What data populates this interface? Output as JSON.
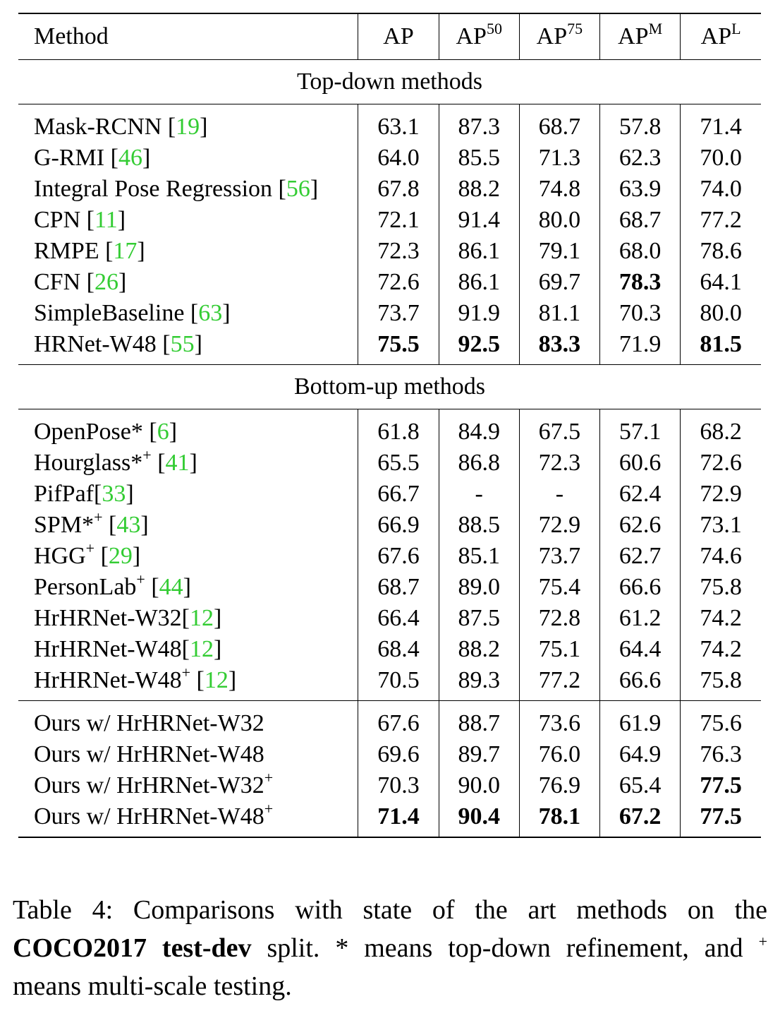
{
  "table": {
    "columns": [
      "Method",
      "AP",
      "AP",
      "AP",
      "AP",
      "AP"
    ],
    "column_superscripts": [
      "",
      "",
      "50",
      "75",
      "M",
      "L"
    ],
    "sections": [
      {
        "title": "Top-down methods",
        "groups": [
          [
            {
              "name": "Mask-RCNN",
              "sup": "",
              "ref": "19",
              "ref_space": true,
              "values": [
                "63.1",
                "87.3",
                "68.7",
                "57.8",
                "71.4"
              ],
              "bold": [
                false,
                false,
                false,
                false,
                false
              ]
            },
            {
              "name": "G-RMI",
              "sup": "",
              "ref": "46",
              "ref_space": true,
              "values": [
                "64.0",
                "85.5",
                "71.3",
                "62.3",
                "70.0"
              ],
              "bold": [
                false,
                false,
                false,
                false,
                false
              ]
            },
            {
              "name": "Integral Pose Regression",
              "sup": "",
              "ref": "56",
              "ref_space": true,
              "values": [
                "67.8",
                "88.2",
                "74.8",
                "63.9",
                "74.0"
              ],
              "bold": [
                false,
                false,
                false,
                false,
                false
              ]
            },
            {
              "name": "CPN",
              "sup": "",
              "ref": "11",
              "ref_space": true,
              "values": [
                "72.1",
                "91.4",
                "80.0",
                "68.7",
                "77.2"
              ],
              "bold": [
                false,
                false,
                false,
                false,
                false
              ]
            },
            {
              "name": "RMPE",
              "sup": "",
              "ref": "17",
              "ref_space": true,
              "values": [
                "72.3",
                "86.1",
                "79.1",
                "68.0",
                "78.6"
              ],
              "bold": [
                false,
                false,
                false,
                false,
                false
              ]
            },
            {
              "name": "CFN",
              "sup": "",
              "ref": "26",
              "ref_space": true,
              "values": [
                "72.6",
                "86.1",
                "69.7",
                "78.3",
                "64.1"
              ],
              "bold": [
                false,
                false,
                false,
                true,
                false
              ]
            },
            {
              "name": "SimpleBaseline",
              "sup": "",
              "ref": "63",
              "ref_space": true,
              "values": [
                "73.7",
                "91.9",
                "81.1",
                "70.3",
                "80.0"
              ],
              "bold": [
                false,
                false,
                false,
                false,
                false
              ]
            },
            {
              "name": "HRNet-W48",
              "sup": "",
              "ref": "55",
              "ref_space": true,
              "values": [
                "75.5",
                "92.5",
                "83.3",
                "71.9",
                "81.5"
              ],
              "bold": [
                true,
                true,
                true,
                false,
                true
              ]
            }
          ]
        ]
      },
      {
        "title": "Bottom-up methods",
        "groups": [
          [
            {
              "name": "OpenPose*",
              "sup": "",
              "ref": "6",
              "ref_space": true,
              "values": [
                "61.8",
                "84.9",
                "67.5",
                "57.1",
                "68.2"
              ],
              "bold": [
                false,
                false,
                false,
                false,
                false
              ]
            },
            {
              "name": "Hourglass*",
              "sup": "+",
              "ref": "41",
              "ref_space": true,
              "values": [
                "65.5",
                "86.8",
                "72.3",
                "60.6",
                "72.6"
              ],
              "bold": [
                false,
                false,
                false,
                false,
                false
              ]
            },
            {
              "name": "PifPaf",
              "sup": "",
              "ref": "33",
              "ref_space": false,
              "values": [
                "66.7",
                "-",
                "-",
                "62.4",
                "72.9"
              ],
              "bold": [
                false,
                false,
                false,
                false,
                false
              ]
            },
            {
              "name": "SPM*",
              "sup": "+",
              "ref": "43",
              "ref_space": true,
              "values": [
                "66.9",
                "88.5",
                "72.9",
                "62.6",
                "73.1"
              ],
              "bold": [
                false,
                false,
                false,
                false,
                false
              ]
            },
            {
              "name": "HGG",
              "sup": "+",
              "ref": "29",
              "ref_space": true,
              "values": [
                "67.6",
                "85.1",
                "73.7",
                "62.7",
                "74.6"
              ],
              "bold": [
                false,
                false,
                false,
                false,
                false
              ]
            },
            {
              "name": "PersonLab",
              "sup": "+",
              "ref": "44",
              "ref_space": true,
              "values": [
                "68.7",
                "89.0",
                "75.4",
                "66.6",
                "75.8"
              ],
              "bold": [
                false,
                false,
                false,
                false,
                false
              ]
            },
            {
              "name": "HrHRNet-W32",
              "sup": "",
              "ref": "12",
              "ref_space": false,
              "values": [
                "66.4",
                "87.5",
                "72.8",
                "61.2",
                "74.2"
              ],
              "bold": [
                false,
                false,
                false,
                false,
                false
              ]
            },
            {
              "name": "HrHRNet-W48",
              "sup": "",
              "ref": "12",
              "ref_space": false,
              "values": [
                "68.4",
                "88.2",
                "75.1",
                "64.4",
                "74.2"
              ],
              "bold": [
                false,
                false,
                false,
                false,
                false
              ]
            },
            {
              "name": "HrHRNet-W48",
              "sup": "+",
              "ref": "12",
              "ref_space": true,
              "values": [
                "70.5",
                "89.3",
                "77.2",
                "66.6",
                "75.8"
              ],
              "bold": [
                false,
                false,
                false,
                false,
                false
              ]
            }
          ],
          [
            {
              "name": "Ours w/ HrHRNet-W32",
              "sup": "",
              "ref": "",
              "ref_space": false,
              "values": [
                "67.6",
                "88.7",
                "73.6",
                "61.9",
                "75.6"
              ],
              "bold": [
                false,
                false,
                false,
                false,
                false
              ]
            },
            {
              "name": "Ours w/ HrHRNet-W48",
              "sup": "",
              "ref": "",
              "ref_space": false,
              "values": [
                "69.6",
                "89.7",
                "76.0",
                "64.9",
                "76.3"
              ],
              "bold": [
                false,
                false,
                false,
                false,
                false
              ]
            },
            {
              "name": "Ours w/ HrHRNet-W32",
              "sup": "+",
              "ref": "",
              "ref_space": false,
              "values": [
                "70.3",
                "90.0",
                "76.9",
                "65.4",
                "77.5"
              ],
              "bold": [
                false,
                false,
                false,
                false,
                true
              ]
            },
            {
              "name": "Ours w/ HrHRNet-W48",
              "sup": "+",
              "ref": "",
              "ref_space": false,
              "values": [
                "71.4",
                "90.4",
                "78.1",
                "67.2",
                "77.5"
              ],
              "bold": [
                true,
                true,
                true,
                true,
                true
              ]
            }
          ]
        ]
      }
    ]
  },
  "caption": {
    "label": "Table 4:",
    "text_1": "Comparisons with state of the art methods on the",
    "bold_text": "COCO2017 test-dev",
    "text_2": "split.  * means top-down refinement,",
    "text_3": "and",
    "sup_symbol": "+",
    "text_4": "means multi-scale testing."
  }
}
